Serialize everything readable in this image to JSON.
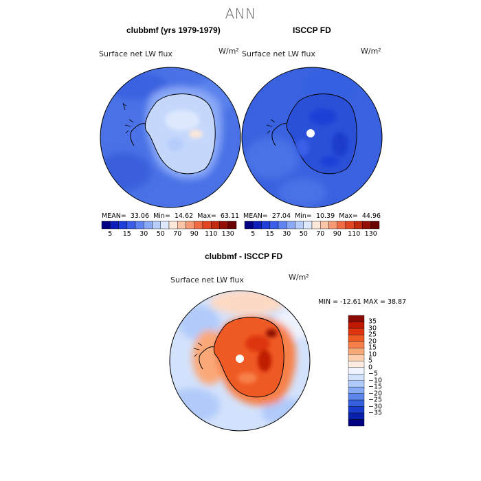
{
  "page": {
    "title": "ANN"
  },
  "panels": {
    "model": {
      "title": "clubbmf (yrs 1979-1979)",
      "variable": "Surface net LW flux",
      "units": "W/m²",
      "stats": {
        "mean_label": "MEAN=",
        "mean": "33.06",
        "min_label": "Min=",
        "min": "14.62",
        "max_label": "Max=",
        "max": "63.11"
      }
    },
    "obs": {
      "title": "ISCCP FD",
      "variable": "Surface net LW flux",
      "units": "W/m²",
      "stats": {
        "mean_label": "MEAN=",
        "mean": "27.04",
        "min_label": "Min=",
        "min": "10.39",
        "max_label": "Max=",
        "max": "44.96"
      }
    },
    "diff": {
      "title": "clubbmf - ISCCP FD",
      "variable": "Surface net LW flux",
      "units": "W/m²",
      "range_text": "MIN = -12.61 MAX =  38.87"
    }
  },
  "chart_data": [
    {
      "type": "heatmap",
      "title": "clubbmf (yrs 1979-1979)",
      "projection": "south polar stereographic",
      "variable": "Surface net LW flux",
      "units": "W/m2",
      "mean": 33.06,
      "min": 14.62,
      "max": 63.11,
      "colorbar": {
        "levels": [
          5,
          10,
          15,
          20,
          30,
          40,
          50,
          60,
          70,
          80,
          90,
          100,
          110,
          120,
          130
        ],
        "tick_labels": [
          "5",
          "15",
          "30",
          "50",
          "70",
          "90",
          "110",
          "130"
        ],
        "colors": [
          "#000080",
          "#0d1fb8",
          "#1f3fd6",
          "#3a5ee8",
          "#5f83f0",
          "#8aa9f7",
          "#b6cdfb",
          "#dde8fd",
          "#fde7d8",
          "#fbc4a6",
          "#f79a74",
          "#f06c45",
          "#e04524",
          "#c22a10",
          "#931006",
          "#6a0000"
        ]
      }
    },
    {
      "type": "heatmap",
      "title": "ISCCP FD",
      "projection": "south polar stereographic",
      "variable": "Surface net LW flux",
      "units": "W/m2",
      "mean": 27.04,
      "min": 10.39,
      "max": 44.96,
      "colorbar": {
        "levels": [
          5,
          10,
          15,
          20,
          30,
          40,
          50,
          60,
          70,
          80,
          90,
          100,
          110,
          120,
          130
        ],
        "tick_labels": [
          "5",
          "15",
          "30",
          "50",
          "70",
          "90",
          "110",
          "130"
        ],
        "colors": [
          "#000080",
          "#0d1fb8",
          "#1f3fd6",
          "#3a5ee8",
          "#5f83f0",
          "#8aa9f7",
          "#b6cdfb",
          "#dde8fd",
          "#fde7d8",
          "#fbc4a6",
          "#f79a74",
          "#f06c45",
          "#e04524",
          "#c22a10",
          "#931006",
          "#6a0000"
        ]
      }
    },
    {
      "type": "heatmap",
      "title": "clubbmf - ISCCP FD",
      "projection": "south polar stereographic",
      "variable": "Surface net LW flux",
      "units": "W/m2",
      "min": -12.61,
      "max": 38.87,
      "colorbar": {
        "orientation": "vertical",
        "levels": [
          35,
          30,
          25,
          20,
          15,
          10,
          5,
          0,
          -5,
          -10,
          -15,
          -20,
          -25,
          -30,
          -35
        ],
        "tick_labels": [
          "35",
          "30",
          "25",
          "20",
          "15",
          "10",
          "5",
          "0",
          "−5",
          "−10",
          "−15",
          "−20",
          "−25",
          "−30",
          "−35"
        ],
        "colors_top_to_bottom": [
          "#8b0a00",
          "#bf1a00",
          "#dd3510",
          "#ef5a24",
          "#f7804a",
          "#fba878",
          "#fdcfb0",
          "#fdecdf",
          "#eef3fd",
          "#d3e2fc",
          "#b0cafa",
          "#86aaf4",
          "#5c86ec",
          "#3560e0",
          "#1a3ccc",
          "#0820aa",
          "#000080"
        ]
      }
    }
  ]
}
